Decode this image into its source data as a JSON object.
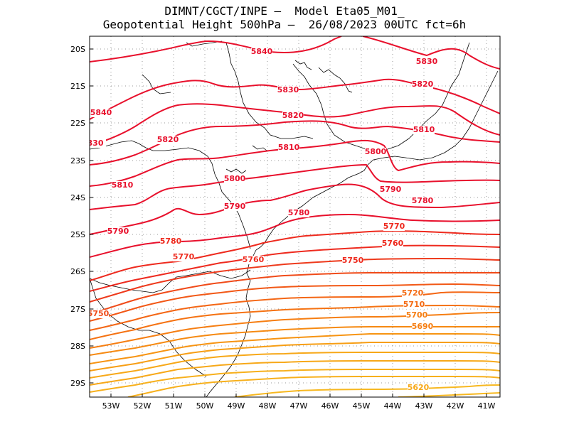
{
  "header": {
    "line1": "DIMNT/CGCT/INPE –  Model Eta05_M01_",
    "line2": "Geopotential Height 500hPa –  26/08/2023 00UTC fct=6h"
  },
  "axes": {
    "lat_labels": [
      "20S",
      "21S",
      "22S",
      "23S",
      "24S",
      "25S",
      "26S",
      "27S",
      "28S",
      "29S"
    ],
    "lon_labels": [
      "53W",
      "52W",
      "51W",
      "50W",
      "49W",
      "48W",
      "47W",
      "46W",
      "45W",
      "44W",
      "43W",
      "42W",
      "41W"
    ]
  },
  "contour_labels": [
    {
      "text": "5840",
      "color": "#e8102c"
    },
    {
      "text": "5830",
      "color": "#e8102c"
    },
    {
      "text": "5830",
      "color": "#e8102c"
    },
    {
      "text": "5820",
      "color": "#e8102c"
    },
    {
      "text": "5840",
      "color": "#e8102c"
    },
    {
      "text": "5820",
      "color": "#e8102c"
    },
    {
      "text": "5810",
      "color": "#e8102c"
    },
    {
      "text": "830",
      "color": "#e8102c"
    },
    {
      "text": "5820",
      "color": "#e8102c"
    },
    {
      "text": "5810",
      "color": "#e8102c"
    },
    {
      "text": "5800",
      "color": "#e8102c"
    },
    {
      "text": "5800",
      "color": "#e8102c"
    },
    {
      "text": "5810",
      "color": "#e8102c"
    },
    {
      "text": "5790",
      "color": "#e8102c"
    },
    {
      "text": "5790",
      "color": "#e8102c"
    },
    {
      "text": "5780",
      "color": "#e8102c"
    },
    {
      "text": "5780",
      "color": "#e8102c"
    },
    {
      "text": "5790",
      "color": "#e8102c"
    },
    {
      "text": "5770",
      "color": "#ee2a1e"
    },
    {
      "text": "5780",
      "color": "#ee2a1e"
    },
    {
      "text": "5760",
      "color": "#ee2a1e"
    },
    {
      "text": "5770",
      "color": "#ee2a1e"
    },
    {
      "text": "5760",
      "color": "#ee2a1e"
    },
    {
      "text": "5750",
      "color": "#ee2a1e"
    },
    {
      "text": "5720",
      "color": "#f46a12"
    },
    {
      "text": "5710",
      "color": "#f46a12"
    },
    {
      "text": "5750",
      "color": "#f04a18"
    },
    {
      "text": "5700",
      "color": "#f67e12"
    },
    {
      "text": "5690",
      "color": "#f67e12"
    },
    {
      "text": "5620",
      "color": "#f7a818"
    }
  ],
  "contour_colors": [
    "#e8102c",
    "#e8102c",
    "#e8102c",
    "#e8102c",
    "#e8102c",
    "#e8102c",
    "#e8102c",
    "#e81a24",
    "#ec2a20",
    "#ee3a1c",
    "#f04a18",
    "#f25816",
    "#f46614",
    "#f57212",
    "#f67e12",
    "#f68a12",
    "#f79412",
    "#f79e14",
    "#f7a818",
    "#f7b01c",
    "#f7b820"
  ]
}
